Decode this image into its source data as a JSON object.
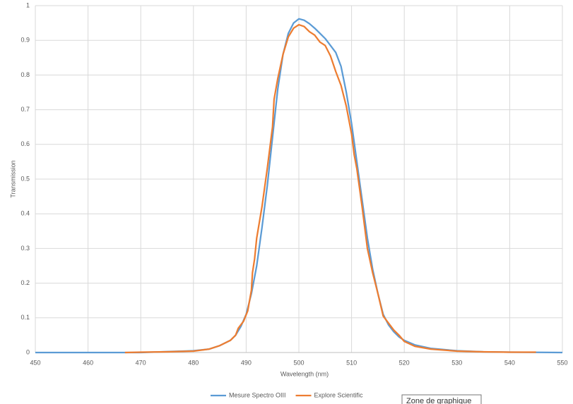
{
  "chart_data": {
    "type": "line",
    "x_label": "Wavelength (nm)",
    "y_label": "Transmission",
    "xlim": [
      450,
      550
    ],
    "xticks": [
      450,
      460,
      470,
      480,
      490,
      500,
      510,
      520,
      530,
      540,
      550
    ],
    "ylim": [
      0,
      1
    ],
    "yticks": [
      0,
      0.1,
      0.2,
      0.3,
      0.4,
      0.5,
      0.6,
      0.7,
      0.8,
      0.9,
      1
    ],
    "grid": true,
    "legend": "bottom",
    "annotation": "Zone de graphique",
    "series": [
      {
        "name": "Mesure Spectro OIII",
        "color": "#5b9bd5",
        "x": [
          450,
          460,
          470,
          480,
          483,
          485,
          487,
          488,
          489,
          490,
          491,
          492,
          493,
          494,
          495,
          496,
          497,
          498,
          499,
          500,
          501,
          502,
          503,
          504,
          505,
          506,
          507,
          508,
          509,
          510,
          511,
          512,
          513,
          514,
          515,
          516,
          517,
          518,
          519,
          520,
          522,
          525,
          530,
          535,
          540,
          550
        ],
        "values": [
          0,
          0,
          0,
          0.005,
          0.01,
          0.02,
          0.035,
          0.05,
          0.075,
          0.11,
          0.17,
          0.25,
          0.36,
          0.48,
          0.62,
          0.76,
          0.86,
          0.92,
          0.95,
          0.962,
          0.958,
          0.948,
          0.935,
          0.92,
          0.905,
          0.885,
          0.865,
          0.825,
          0.75,
          0.66,
          0.55,
          0.44,
          0.33,
          0.24,
          0.17,
          0.11,
          0.08,
          0.06,
          0.045,
          0.035,
          0.022,
          0.012,
          0.005,
          0.002,
          0.001,
          0
        ]
      },
      {
        "name": "Explore Scientific",
        "color": "#ed7d31",
        "x": [
          467,
          470,
          475,
          480,
          483,
          485,
          487,
          488,
          488.5,
          489.5,
          490.3,
          491,
          491.2,
          491.6,
          492,
          493,
          494,
          495,
          495.3,
          496,
          497,
          498,
          499,
          500,
          501,
          502,
          503,
          504,
          505,
          506,
          507,
          508,
          509,
          510,
          510.5,
          511,
          512,
          513,
          514,
          515,
          516,
          517,
          518,
          519,
          520,
          522,
          525,
          530,
          535,
          540,
          545
        ],
        "values": [
          0,
          0.001,
          0.002,
          0.004,
          0.01,
          0.02,
          0.035,
          0.05,
          0.07,
          0.09,
          0.12,
          0.18,
          0.23,
          0.27,
          0.33,
          0.42,
          0.53,
          0.65,
          0.73,
          0.79,
          0.86,
          0.91,
          0.935,
          0.945,
          0.94,
          0.925,
          0.915,
          0.895,
          0.885,
          0.855,
          0.81,
          0.77,
          0.71,
          0.63,
          0.57,
          0.53,
          0.42,
          0.3,
          0.23,
          0.17,
          0.105,
          0.085,
          0.065,
          0.05,
          0.032,
          0.018,
          0.01,
          0.004,
          0.002,
          0.001,
          0.001
        ]
      }
    ]
  }
}
